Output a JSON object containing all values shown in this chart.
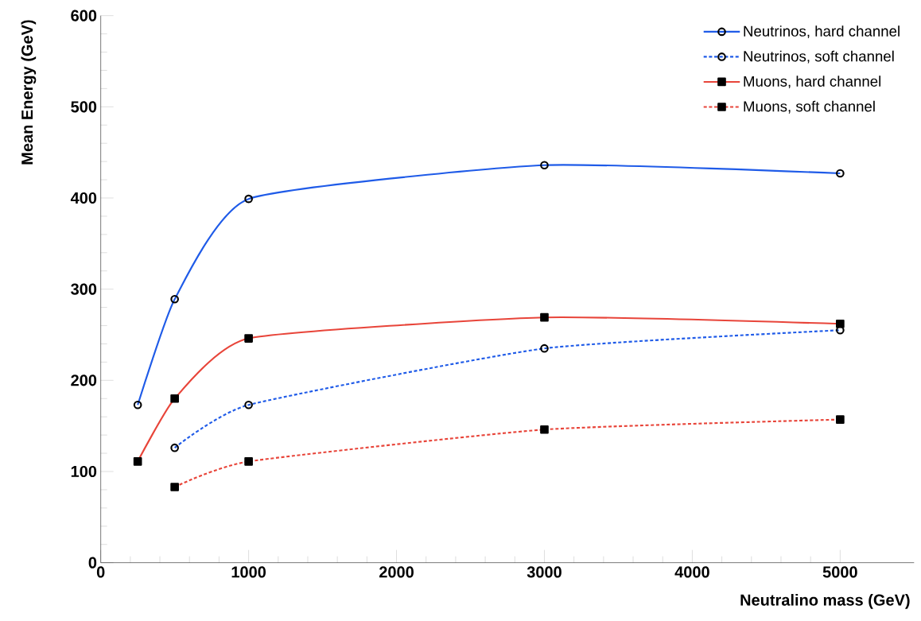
{
  "chart_data": {
    "type": "line",
    "xlabel": "Neutralino mass (GeV)",
    "ylabel": "Mean Energy (GeV)",
    "xlim": [
      0,
      5500
    ],
    "xticks": [
      0,
      1000,
      2000,
      3000,
      4000,
      5000
    ],
    "ylim": [
      0,
      600
    ],
    "yticks": [
      0,
      100,
      200,
      300,
      400,
      500,
      600
    ],
    "grid": false,
    "legend": "top right",
    "series": [
      {
        "name": "Neutrinos, hard channel",
        "color": "#1f5be8",
        "marker": "circle",
        "line_style": "solid",
        "x": [
          250,
          500,
          1000,
          3000,
          5000
        ],
        "values": [
          173,
          289,
          399,
          436,
          427
        ]
      },
      {
        "name": "Neutrinos, soft channel",
        "color": "#1f5be8",
        "marker": "circle",
        "line_style": "dotted",
        "x": [
          500,
          1000,
          3000,
          5000
        ],
        "values": [
          126,
          173,
          235,
          255
        ]
      },
      {
        "name": "Muons, hard channel",
        "color": "#e8453a",
        "marker": "square",
        "line_style": "solid",
        "x": [
          250,
          500,
          1000,
          3000,
          5000
        ],
        "values": [
          111,
          180,
          246,
          269,
          262
        ]
      },
      {
        "name": "Muons, soft channel",
        "color": "#e8453a",
        "marker": "square",
        "line_style": "dotted",
        "x": [
          500,
          1000,
          3000,
          5000
        ],
        "values": [
          83,
          111,
          146,
          157
        ]
      }
    ]
  }
}
